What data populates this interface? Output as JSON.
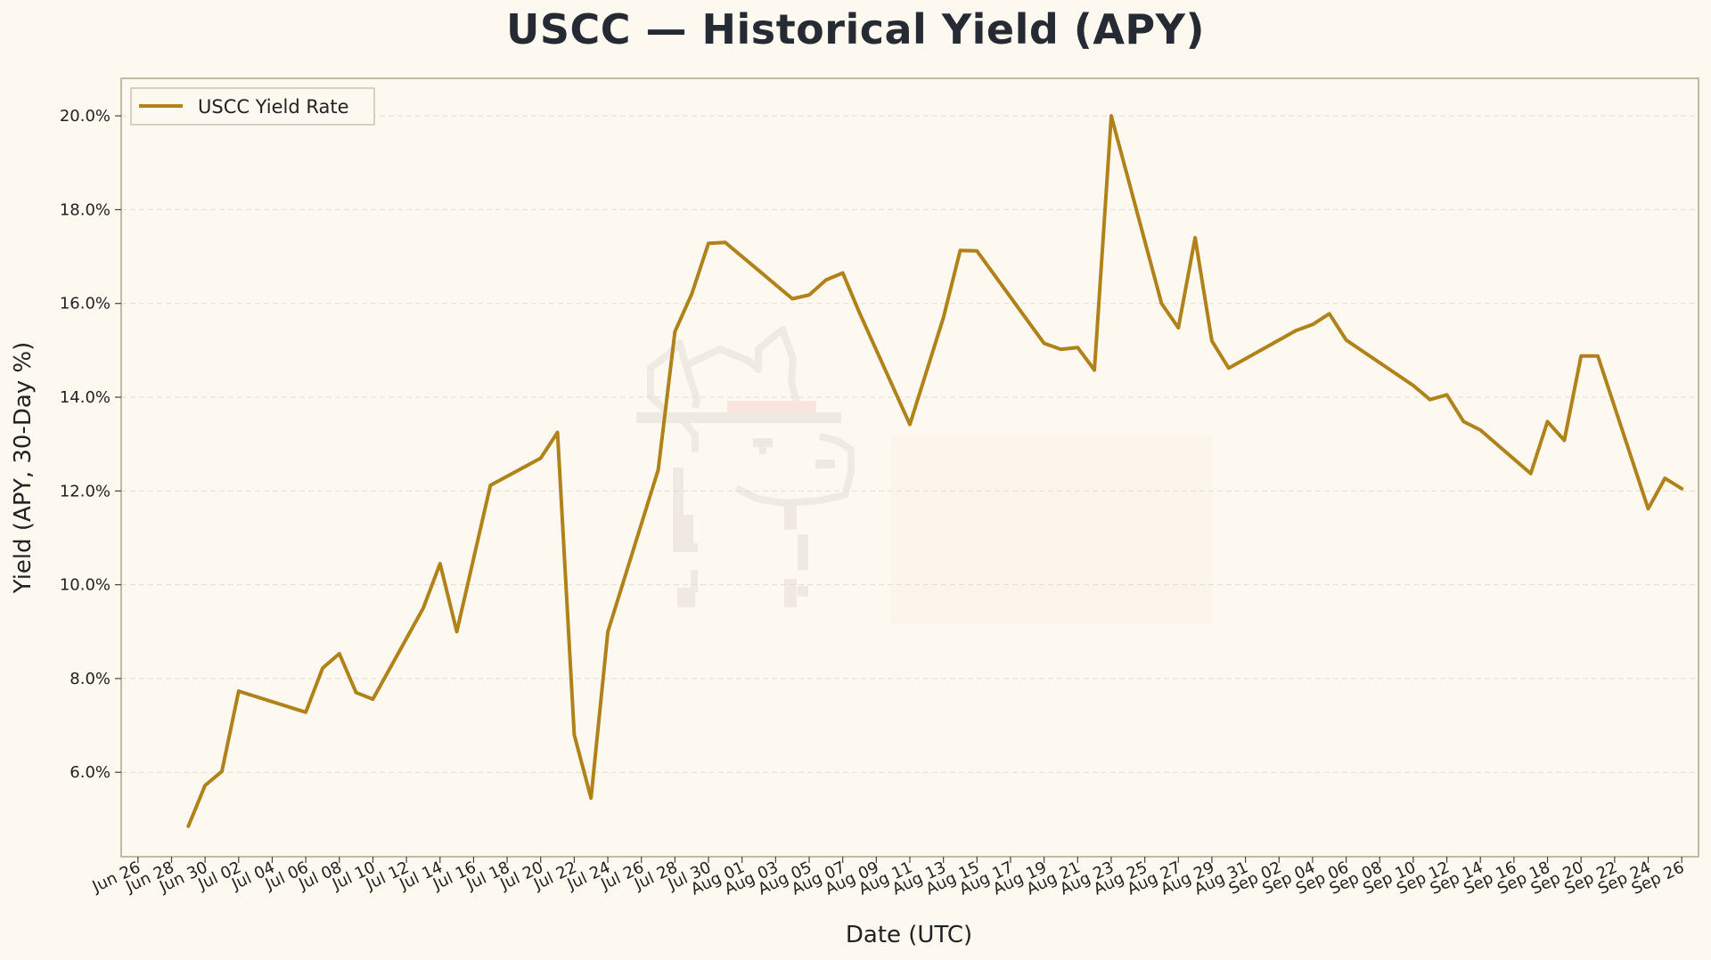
{
  "chart_data": {
    "type": "line",
    "title": "USCC — Historical Yield (APY)",
    "xlabel": "Date (UTC)",
    "ylabel": "Yield (APY, 30-Day %)",
    "legend_position": "top-left",
    "grid": "horizontal dashed",
    "colors": {
      "line": "#b08219",
      "background": "#fdf8f0",
      "frame": "#b9b49c",
      "grid": "#e3ddd2"
    },
    "xlim": [
      "2025-06-25",
      "2025-09-27"
    ],
    "ylim": [
      4.2,
      20.8
    ],
    "y_ticks": [
      6,
      8,
      10,
      12,
      14,
      16,
      18,
      20
    ],
    "y_tick_labels": [
      "6.0%",
      "8.0%",
      "10.0%",
      "12.0%",
      "14.0%",
      "16.0%",
      "18.0%",
      "20.0%"
    ],
    "x_ticks": [
      "2025-06-26",
      "2025-06-28",
      "2025-06-30",
      "2025-07-02",
      "2025-07-04",
      "2025-07-06",
      "2025-07-08",
      "2025-07-10",
      "2025-07-12",
      "2025-07-14",
      "2025-07-16",
      "2025-07-18",
      "2025-07-20",
      "2025-07-22",
      "2025-07-24",
      "2025-07-26",
      "2025-07-28",
      "2025-07-30",
      "2025-08-01",
      "2025-08-03",
      "2025-08-05",
      "2025-08-07",
      "2025-08-09",
      "2025-08-11",
      "2025-08-13",
      "2025-08-15",
      "2025-08-17",
      "2025-08-19",
      "2025-08-21",
      "2025-08-23",
      "2025-08-25",
      "2025-08-27",
      "2025-08-29",
      "2025-08-31",
      "2025-09-02",
      "2025-09-04",
      "2025-09-06",
      "2025-09-08",
      "2025-09-10",
      "2025-09-12",
      "2025-09-14",
      "2025-09-16",
      "2025-09-18",
      "2025-09-20",
      "2025-09-22",
      "2025-09-24",
      "2025-09-26"
    ],
    "x_tick_labels": [
      "Jun 26",
      "Jun 28",
      "Jun 30",
      "Jul 02",
      "Jul 04",
      "Jul 06",
      "Jul 08",
      "Jul 10",
      "Jul 12",
      "Jul 14",
      "Jul 16",
      "Jul 18",
      "Jul 20",
      "Jul 22",
      "Jul 24",
      "Jul 26",
      "Jul 28",
      "Jul 30",
      "Aug 01",
      "Aug 03",
      "Aug 05",
      "Aug 07",
      "Aug 09",
      "Aug 11",
      "Aug 13",
      "Aug 15",
      "Aug 17",
      "Aug 19",
      "Aug 21",
      "Aug 23",
      "Aug 25",
      "Aug 27",
      "Aug 29",
      "Aug 31",
      "Sep 02",
      "Sep 04",
      "Sep 06",
      "Sep 08",
      "Sep 10",
      "Sep 12",
      "Sep 14",
      "Sep 16",
      "Sep 18",
      "Sep 20",
      "Sep 22",
      "Sep 24",
      "Sep 26"
    ],
    "series": [
      {
        "name": "USCC Yield Rate",
        "points": [
          [
            "2025-06-29",
            4.85
          ],
          [
            "2025-06-30",
            5.72
          ],
          [
            "2025-07-01",
            6.02
          ],
          [
            "2025-07-02",
            7.73
          ],
          [
            "2025-07-06",
            7.28
          ],
          [
            "2025-07-07",
            8.22
          ],
          [
            "2025-07-08",
            8.53
          ],
          [
            "2025-07-09",
            7.7
          ],
          [
            "2025-07-10",
            7.56
          ],
          [
            "2025-07-13",
            9.5
          ],
          [
            "2025-07-14",
            10.45
          ],
          [
            "2025-07-15",
            9.0
          ],
          [
            "2025-07-17",
            12.12
          ],
          [
            "2025-07-20",
            12.7
          ],
          [
            "2025-07-21",
            13.25
          ],
          [
            "2025-07-22",
            6.8
          ],
          [
            "2025-07-23",
            5.45
          ],
          [
            "2025-07-24",
            9.0
          ],
          [
            "2025-07-27",
            12.45
          ],
          [
            "2025-07-28",
            15.4
          ],
          [
            "2025-07-29",
            16.2
          ],
          [
            "2025-07-30",
            17.28
          ],
          [
            "2025-07-31",
            17.3
          ],
          [
            "2025-08-04",
            16.1
          ],
          [
            "2025-08-05",
            16.18
          ],
          [
            "2025-08-06",
            16.5
          ],
          [
            "2025-08-07",
            16.65
          ],
          [
            "2025-08-08",
            15.8
          ],
          [
            "2025-08-11",
            13.42
          ],
          [
            "2025-08-13",
            15.7
          ],
          [
            "2025-08-14",
            17.13
          ],
          [
            "2025-08-15",
            17.12
          ],
          [
            "2025-08-19",
            15.15
          ],
          [
            "2025-08-20",
            15.02
          ],
          [
            "2025-08-21",
            15.06
          ],
          [
            "2025-08-22",
            14.58
          ],
          [
            "2025-08-23",
            20.0
          ],
          [
            "2025-08-26",
            16.0
          ],
          [
            "2025-08-27",
            15.48
          ],
          [
            "2025-08-28",
            17.4
          ],
          [
            "2025-08-29",
            15.2
          ],
          [
            "2025-08-30",
            14.62
          ],
          [
            "2025-09-03",
            15.42
          ],
          [
            "2025-09-04",
            15.55
          ],
          [
            "2025-09-05",
            15.78
          ],
          [
            "2025-09-06",
            15.22
          ],
          [
            "2025-09-10",
            14.25
          ],
          [
            "2025-09-11",
            13.95
          ],
          [
            "2025-09-12",
            14.05
          ],
          [
            "2025-09-13",
            13.48
          ],
          [
            "2025-09-14",
            13.3
          ],
          [
            "2025-09-17",
            12.37
          ],
          [
            "2025-09-18",
            13.48
          ],
          [
            "2025-09-19",
            13.08
          ],
          [
            "2025-09-20",
            14.88
          ],
          [
            "2025-09-21",
            14.88
          ],
          [
            "2025-09-24",
            11.62
          ],
          [
            "2025-09-25",
            12.27
          ],
          [
            "2025-09-26",
            12.05
          ]
        ]
      }
    ]
  }
}
